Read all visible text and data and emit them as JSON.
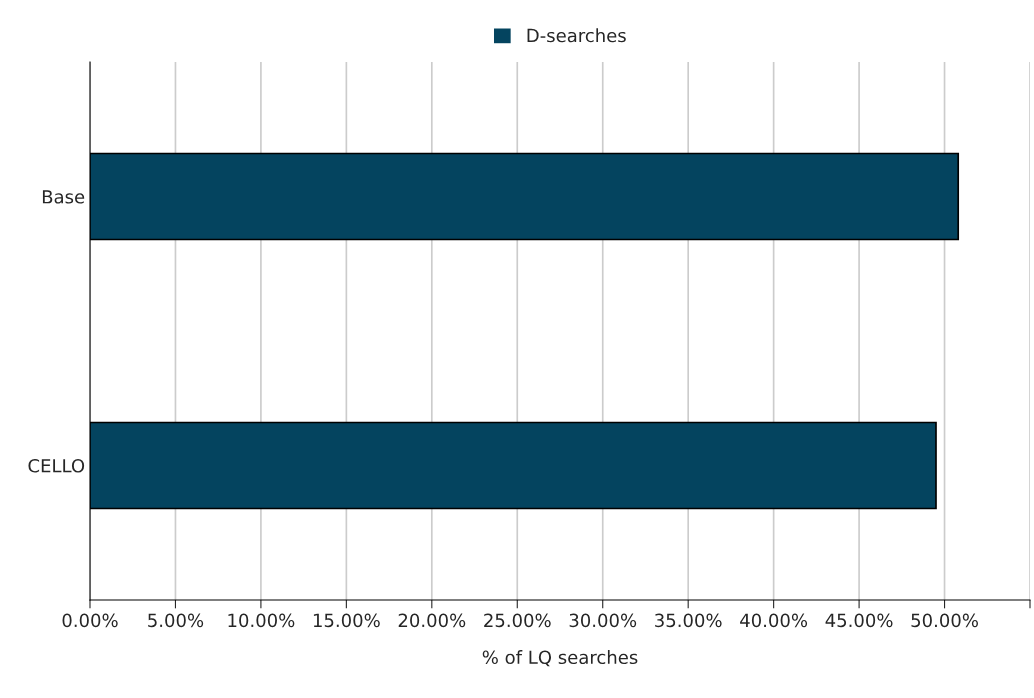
{
  "chart_data": {
    "type": "bar",
    "orientation": "horizontal",
    "categories": [
      "Base",
      "CELLO"
    ],
    "series": [
      {
        "name": "D-searches",
        "color": "#04445f",
        "values": [
          50.8,
          49.5
        ]
      }
    ],
    "xlabel": "% of LQ searches",
    "xlim": [
      0,
      55
    ],
    "xticks": [
      {
        "value": 0,
        "label": "0.00%"
      },
      {
        "value": 5,
        "label": "5.00%"
      },
      {
        "value": 10,
        "label": "10.00%"
      },
      {
        "value": 15,
        "label": "15.00%"
      },
      {
        "value": 20,
        "label": "20.00%"
      },
      {
        "value": 25,
        "label": "25.00%"
      },
      {
        "value": 30,
        "label": "30.00%"
      },
      {
        "value": 35,
        "label": "35.00%"
      },
      {
        "value": 40,
        "label": "40.00%"
      },
      {
        "value": 45,
        "label": "45.00%"
      },
      {
        "value": 50,
        "label": "50.00%"
      },
      {
        "value": 55,
        "label": null
      }
    ],
    "grid": "x",
    "legend": "top"
  }
}
